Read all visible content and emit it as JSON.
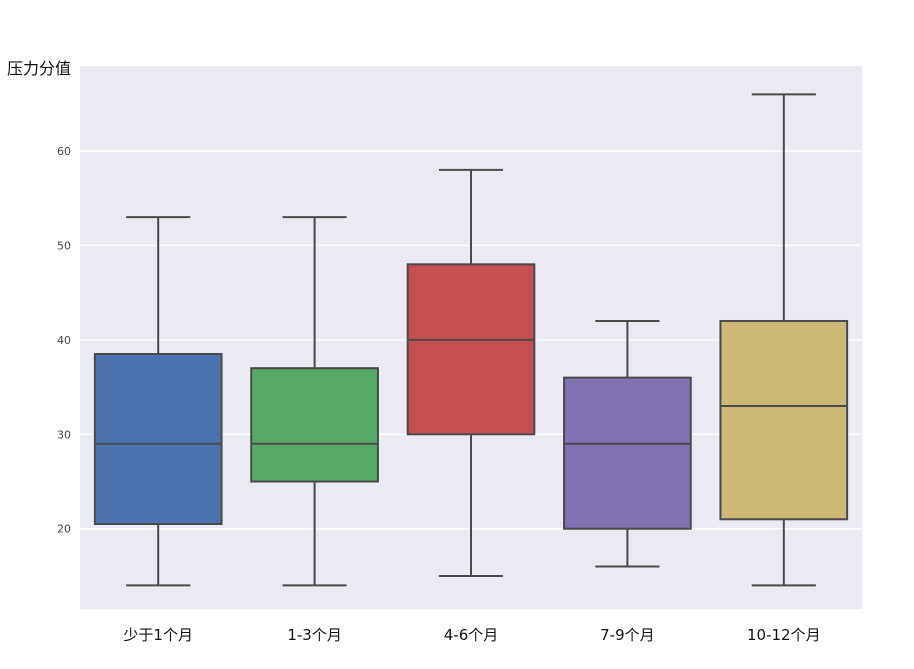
{
  "chart_data": {
    "type": "box",
    "title": "",
    "xlabel": "",
    "ylabel": "压力分值",
    "ylim": [
      11.5,
      69
    ],
    "yticks": [
      20,
      30,
      40,
      50,
      60
    ],
    "grid": true,
    "categories": [
      "少于1个月",
      "1-3个月",
      "4-6个月",
      "7-9个月",
      "10-12个月"
    ],
    "series": [
      {
        "category": "少于1个月",
        "whisker_low": 14,
        "q1": 20.5,
        "median": 29,
        "q3": 38.5,
        "whisker_high": 53,
        "color": "#4c72b0"
      },
      {
        "category": "1-3个月",
        "whisker_low": 14,
        "q1": 25,
        "median": 29,
        "q3": 37,
        "whisker_high": 53,
        "color": "#55a868"
      },
      {
        "category": "4-6个月",
        "whisker_low": 15,
        "q1": 30,
        "median": 40,
        "q3": 48,
        "whisker_high": 58,
        "color": "#c44e52"
      },
      {
        "category": "7-9个月",
        "whisker_low": 16,
        "q1": 20,
        "median": 29,
        "q3": 36,
        "whisker_high": 42,
        "color": "#8172b2"
      },
      {
        "category": "10-12个月",
        "whisker_low": 14,
        "q1": 21,
        "median": 33,
        "q3": 42,
        "whisker_high": 66,
        "color": "#ccb974"
      }
    ],
    "colors": {
      "plot_background": "#eaeaf2",
      "grid": "#ffffff",
      "box_edge": "#4a4a4a"
    }
  }
}
